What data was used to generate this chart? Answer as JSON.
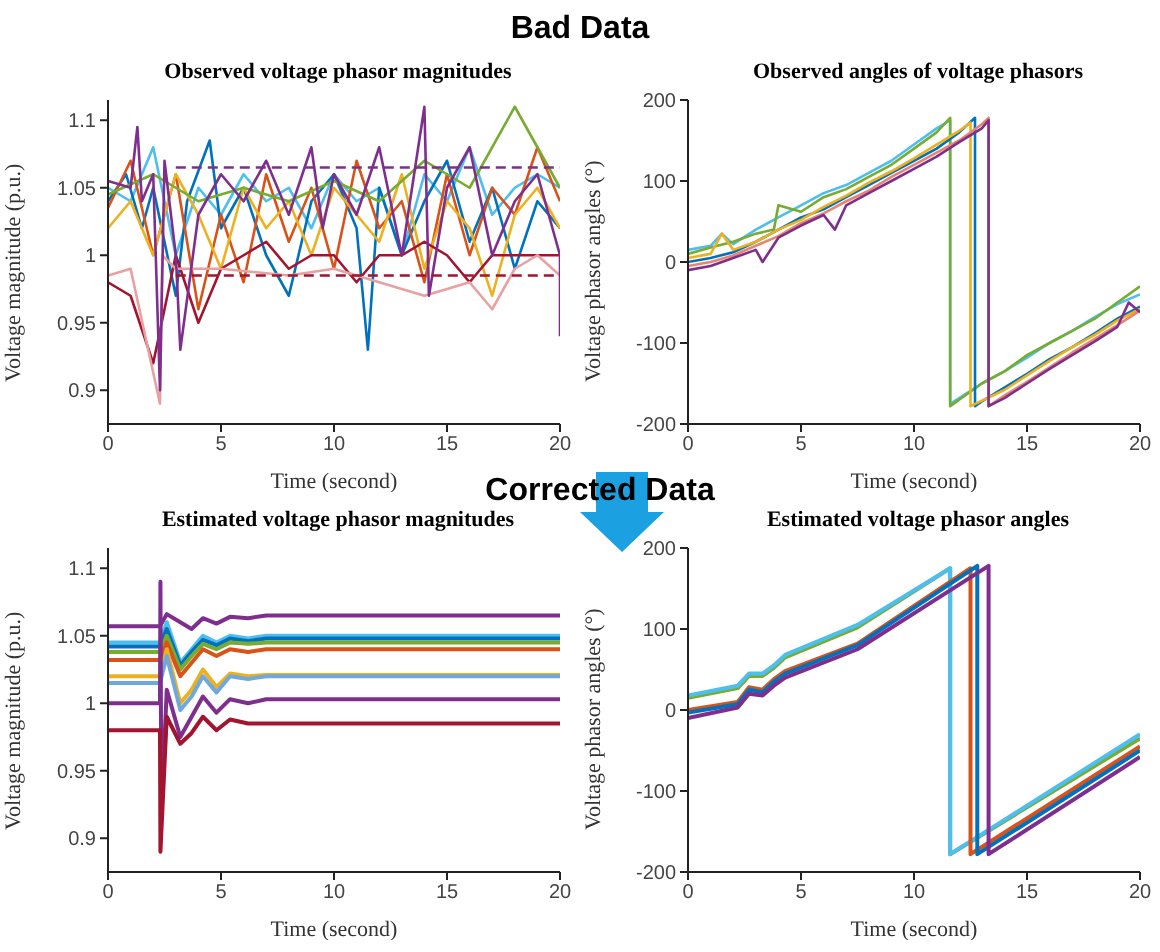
{
  "chart_data": [
    {
      "type": "line",
      "title": "Observed voltage phasor magnitudes",
      "xlabel": "Time (second)",
      "ylabel": "Voltage magnitude (p.u.)",
      "annotations": [
        "Bad Data"
      ],
      "xlim": [
        0,
        20
      ],
      "xticks": [
        0,
        5,
        10,
        15,
        20
      ],
      "ylim": [
        0.875,
        1.115
      ],
      "yticks": [
        0.9,
        0.95,
        1,
        1.05,
        1.1
      ],
      "grid": false,
      "legend": false,
      "series": [
        {
          "color": "#4dbeee",
          "x": [
            0,
            1,
            2,
            3,
            4,
            5,
            6,
            7,
            8,
            9,
            10,
            11,
            12,
            13,
            14,
            15,
            16,
            17,
            18,
            19,
            20
          ],
          "values": [
            1.05,
            1.04,
            1.08,
            1.0,
            1.05,
            1.03,
            1.06,
            1.04,
            1.05,
            1.02,
            1.06,
            1.04,
            1.05,
            1.0,
            1.06,
            1.04,
            1.08,
            1.03,
            1.05,
            1.06,
            1.05
          ]
        },
        {
          "color": "#0072bd",
          "x": [
            0,
            0.8,
            1.5,
            2,
            3,
            3.5,
            4.5,
            5,
            6,
            7,
            8,
            9,
            10,
            11,
            11.5,
            12,
            13,
            14,
            15,
            16,
            17,
            18,
            19,
            20
          ],
          "values": [
            1.04,
            1.06,
            1.02,
            1.05,
            0.97,
            1.04,
            1.085,
            1.02,
            1.05,
            1.0,
            0.97,
            1.04,
            1.06,
            1.02,
            0.93,
            1.05,
            1.0,
            1.04,
            1.07,
            1.01,
            1.05,
            0.99,
            1.04,
            1.02
          ]
        },
        {
          "color": "#d95319",
          "x": [
            0,
            1,
            2,
            3,
            4,
            5,
            6,
            7,
            8,
            9,
            10,
            11,
            12,
            13,
            14,
            15,
            16,
            17,
            18,
            19,
            20
          ],
          "values": [
            1.035,
            1.07,
            1.0,
            1.06,
            0.96,
            1.03,
            0.98,
            1.06,
            1.01,
            1.05,
            0.99,
            1.07,
            1.02,
            1.04,
            0.98,
            1.06,
            1.0,
            1.05,
            1.03,
            1.08,
            1.04
          ]
        },
        {
          "color": "#edb120",
          "x": [
            0,
            1,
            2,
            3,
            4,
            5,
            6,
            7,
            8,
            9,
            10,
            11,
            12,
            13,
            14,
            15,
            16,
            17,
            18,
            19,
            20
          ],
          "values": [
            1.02,
            1.04,
            1.0,
            1.06,
            1.03,
            0.99,
            1.05,
            1.02,
            1.04,
            1.0,
            1.05,
            1.03,
            1.01,
            1.06,
            0.99,
            1.04,
            1.02,
            0.97,
            1.03,
            1.05,
            1.02
          ]
        },
        {
          "color": "#77ac30",
          "x": [
            0,
            2,
            4,
            6,
            8,
            10,
            12,
            14,
            16,
            18,
            20
          ],
          "values": [
            1.045,
            1.06,
            1.04,
            1.05,
            1.04,
            1.055,
            1.04,
            1.07,
            1.05,
            1.11,
            1.05
          ]
        },
        {
          "color": "#a2142f",
          "x": [
            0,
            1,
            2,
            3,
            4,
            5,
            6,
            7,
            8,
            9,
            10,
            11,
            12,
            13,
            14,
            15,
            16,
            17,
            18,
            19,
            20
          ],
          "values": [
            0.98,
            0.97,
            0.92,
            1.0,
            0.95,
            0.99,
            1.0,
            1.01,
            0.99,
            1.0,
            1.0,
            0.98,
            1.0,
            1.0,
            1.01,
            1.0,
            0.98,
            1.0,
            1.0,
            1.0,
            1.0
          ]
        },
        {
          "color": "#e8a0a0",
          "x": [
            0,
            1,
            2.3,
            2.4,
            3,
            5,
            8,
            10,
            12,
            14,
            16,
            17,
            18,
            19,
            20
          ],
          "values": [
            0.985,
            0.99,
            0.89,
            1.0,
            0.99,
            0.99,
            0.985,
            0.99,
            0.98,
            0.97,
            0.98,
            0.96,
            0.99,
            1.0,
            0.985
          ]
        },
        {
          "color": "#7e2f8e",
          "x": [
            0,
            1,
            1.3,
            1.5,
            2,
            2.3,
            2.5,
            3,
            3.2,
            4,
            5,
            6,
            7,
            8,
            9,
            9.5,
            10,
            11,
            12,
            13,
            14,
            14.2,
            15,
            16,
            17,
            18,
            19,
            20,
            20
          ],
          "values": [
            1.055,
            1.05,
            1.095,
            1.04,
            1.06,
            0.9,
            1.07,
            1.0,
            0.93,
            1.03,
            1.06,
            1.04,
            1.07,
            1.03,
            1.08,
            1.02,
            1.06,
            1.03,
            1.08,
            1.0,
            1.11,
            0.97,
            1.05,
            1.08,
            1.0,
            1.04,
            1.06,
            1.0,
            0.94
          ]
        },
        {
          "color": "#7e2f8e",
          "line_style": "dashed",
          "x": [
            3,
            20
          ],
          "values": [
            1.065,
            1.065
          ]
        },
        {
          "color": "#a2142f",
          "line_style": "dashed",
          "x": [
            3,
            20
          ],
          "values": [
            0.985,
            0.985
          ]
        }
      ]
    },
    {
      "type": "line",
      "title": "Observed angles of voltage phasors",
      "xlabel": "Time (second)",
      "ylabel": "Voltage phasor angles (°)",
      "xlim": [
        0,
        20
      ],
      "xticks": [
        0,
        5,
        10,
        15,
        20
      ],
      "ylim": [
        -200,
        200
      ],
      "yticks": [
        -200,
        -100,
        0,
        100,
        200
      ],
      "grid": false,
      "legend": false,
      "series": [
        {
          "color": "#4dbeee",
          "x": [
            0,
            1,
            1.5,
            2,
            3,
            4,
            5,
            6,
            7,
            8,
            9,
            10,
            11,
            11.6,
            11.6,
            13,
            14,
            15,
            16,
            17,
            18,
            19,
            20
          ],
          "values": [
            15,
            20,
            35,
            22,
            40,
            55,
            70,
            85,
            95,
            110,
            125,
            145,
            165,
            175,
            -175,
            -150,
            -135,
            -118,
            -100,
            -85,
            -68,
            -52,
            -40
          ]
        },
        {
          "color": "#77ac30",
          "x": [
            0,
            1,
            2,
            3,
            3.8,
            4,
            5,
            6,
            7,
            8,
            9,
            10,
            11,
            11.6,
            11.6,
            12,
            13,
            14,
            15,
            16,
            17,
            18,
            19,
            20
          ],
          "values": [
            10,
            18,
            25,
            35,
            40,
            70,
            62,
            80,
            90,
            105,
            120,
            140,
            160,
            178,
            -178,
            -170,
            -150,
            -135,
            -115,
            -100,
            -85,
            -70,
            -50,
            -30
          ]
        },
        {
          "color": "#0072bd",
          "x": [
            0,
            1,
            2,
            3,
            4,
            5,
            6,
            7,
            8,
            9,
            10,
            11,
            12,
            12.7,
            12.7,
            13,
            14,
            15,
            16,
            17,
            18,
            19,
            20
          ],
          "values": [
            0,
            5,
            12,
            25,
            40,
            55,
            65,
            80,
            95,
            110,
            125,
            140,
            160,
            178,
            -178,
            -172,
            -155,
            -138,
            -120,
            -105,
            -88,
            -70,
            -55
          ]
        },
        {
          "color": "#edb120",
          "x": [
            0,
            1,
            1.5,
            2,
            3,
            4,
            5,
            6,
            7,
            8,
            9,
            10,
            11,
            12,
            12.5,
            12.5,
            14,
            15,
            16,
            17,
            18,
            19,
            20
          ],
          "values": [
            5,
            10,
            35,
            15,
            25,
            40,
            52,
            68,
            82,
            98,
            112,
            128,
            145,
            162,
            172,
            -178,
            -158,
            -140,
            -122,
            -105,
            -90,
            -72,
            -58
          ]
        },
        {
          "color": "#e8846f",
          "x": [
            0,
            1,
            2,
            3,
            4,
            5,
            6,
            7,
            8,
            9,
            10,
            11,
            12,
            13,
            13.3,
            13.3,
            14,
            15,
            16,
            17,
            18,
            19,
            20
          ],
          "values": [
            -5,
            0,
            8,
            20,
            32,
            48,
            60,
            75,
            88,
            105,
            120,
            135,
            150,
            170,
            178,
            -178,
            -165,
            -148,
            -130,
            -112,
            -95,
            -78,
            -60
          ]
        },
        {
          "color": "#7e2f8e",
          "x": [
            0,
            1,
            2,
            3,
            3.3,
            4,
            5,
            6,
            6.5,
            7,
            8,
            9,
            10,
            11,
            12,
            13,
            13.3,
            13.3,
            14,
            15,
            16,
            17,
            18,
            19,
            19.5,
            20
          ],
          "values": [
            -10,
            -5,
            5,
            15,
            0,
            30,
            45,
            58,
            40,
            70,
            85,
            100,
            115,
            130,
            148,
            165,
            175,
            -178,
            -168,
            -150,
            -132,
            -115,
            -98,
            -80,
            -50,
            -62
          ]
        }
      ]
    },
    {
      "type": "line",
      "title": "Estimated voltage phasor magnitudes",
      "xlabel": "Time (second)",
      "ylabel": "Voltage magnitude (p.u.)",
      "annotations": [
        "Corrected Data"
      ],
      "xlim": [
        0,
        20
      ],
      "xticks": [
        0,
        5,
        10,
        15,
        20
      ],
      "ylim": [
        0.875,
        1.115
      ],
      "yticks": [
        0.9,
        0.95,
        1,
        1.05,
        1.1
      ],
      "grid": false,
      "legend": false,
      "series": [
        {
          "color": "#7e2f8e",
          "x": [
            0,
            2.3,
            2.6,
            3.2,
            3.7,
            4.2,
            4.8,
            5.4,
            6.2,
            7,
            20
          ],
          "values": [
            1.057,
            1.057,
            1.066,
            1.06,
            1.055,
            1.063,
            1.059,
            1.064,
            1.063,
            1.065,
            1.065
          ]
        },
        {
          "color": "#4dbeee",
          "x": [
            0,
            2.3,
            2.6,
            3.2,
            3.7,
            4.2,
            4.8,
            5.4,
            6.2,
            7,
            20
          ],
          "values": [
            1.045,
            1.045,
            1.06,
            1.03,
            1.04,
            1.05,
            1.045,
            1.05,
            1.048,
            1.05,
            1.05
          ]
        },
        {
          "color": "#0072bd",
          "x": [
            0,
            2.3,
            2.6,
            3.2,
            3.7,
            4.2,
            4.8,
            5.4,
            6.2,
            7,
            20
          ],
          "values": [
            1.042,
            1.042,
            1.055,
            1.028,
            1.038,
            1.047,
            1.043,
            1.048,
            1.046,
            1.048,
            1.048
          ]
        },
        {
          "color": "#77ac30",
          "x": [
            0,
            2.3,
            2.6,
            3.2,
            3.7,
            4.2,
            4.8,
            5.4,
            6.2,
            7,
            20
          ],
          "values": [
            1.038,
            1.038,
            1.05,
            1.025,
            1.035,
            1.044,
            1.04,
            1.045,
            1.044,
            1.045,
            1.045
          ]
        },
        {
          "color": "#d95319",
          "x": [
            0,
            2.3,
            2.6,
            3.2,
            3.7,
            4.2,
            4.8,
            5.4,
            6.2,
            7,
            20
          ],
          "values": [
            1.032,
            1.032,
            1.045,
            1.02,
            1.03,
            1.04,
            1.035,
            1.04,
            1.038,
            1.04,
            1.04
          ]
        },
        {
          "color": "#edb120",
          "x": [
            0,
            2.3,
            2.6,
            3.2,
            3.7,
            4.2,
            4.8,
            5.4,
            6.2,
            7,
            20
          ],
          "values": [
            1.02,
            1.02,
            1.04,
            1.0,
            1.01,
            1.025,
            1.012,
            1.022,
            1.02,
            1.021,
            1.021
          ]
        },
        {
          "color": "#6fa8dc",
          "x": [
            0,
            2.3,
            2.6,
            3.2,
            3.7,
            4.2,
            4.8,
            5.4,
            6.2,
            7,
            20
          ],
          "values": [
            1.015,
            1.015,
            1.035,
            0.995,
            1.005,
            1.02,
            1.008,
            1.02,
            1.018,
            1.02,
            1.02
          ]
        },
        {
          "color": "#7e2f8e",
          "x": [
            0,
            2.3,
            2.32,
            2.36,
            2.6,
            3.2,
            3.7,
            4.2,
            4.8,
            5.4,
            6.2,
            7,
            20
          ],
          "values": [
            1.0,
            1.0,
            1.09,
            0.92,
            1.01,
            0.975,
            0.99,
            1.005,
            0.993,
            1.003,
            1.0,
            1.003,
            1.003
          ]
        },
        {
          "color": "#a2142f",
          "x": [
            0,
            2.3,
            2.32,
            2.6,
            3.2,
            3.7,
            4.2,
            4.8,
            5.4,
            6.2,
            7,
            20
          ],
          "values": [
            0.98,
            0.98,
            0.89,
            0.99,
            0.97,
            0.978,
            0.99,
            0.98,
            0.988,
            0.985,
            0.985,
            0.985
          ]
        }
      ]
    },
    {
      "type": "line",
      "title": "Estimated voltage phasor angles",
      "xlabel": "Time (second)",
      "ylabel": "Voltage phasor angles (°)",
      "xlim": [
        0,
        20
      ],
      "xticks": [
        0,
        5,
        10,
        15,
        20
      ],
      "ylim": [
        -200,
        200
      ],
      "yticks": [
        -200,
        -100,
        0,
        100,
        200
      ],
      "grid": false,
      "legend": false,
      "series": [
        {
          "color": "#77ac30",
          "x": [
            0,
            2.2,
            2.7,
            3.3,
            3.8,
            4.3,
            7.5,
            11.6,
            11.6,
            20
          ],
          "values": [
            15,
            27,
            42,
            42,
            52,
            65,
            102,
            175,
            -178,
            -35
          ]
        },
        {
          "color": "#4dbeee",
          "x": [
            0,
            2.2,
            2.7,
            3.3,
            3.8,
            4.3,
            7.5,
            11.6,
            11.6,
            20
          ],
          "values": [
            18,
            30,
            45,
            45,
            55,
            68,
            105,
            175,
            -178,
            -30
          ]
        },
        {
          "color": "#d95319",
          "x": [
            0,
            2.2,
            2.7,
            3.3,
            3.8,
            4.3,
            7.5,
            12.5,
            12.5,
            20
          ],
          "values": [
            0,
            10,
            28,
            25,
            38,
            48,
            82,
            175,
            -178,
            -45
          ]
        },
        {
          "color": "#0072bd",
          "x": [
            0,
            2.2,
            2.7,
            3.3,
            3.8,
            4.3,
            7.5,
            12.8,
            12.8,
            20
          ],
          "values": [
            -3,
            7,
            25,
            22,
            35,
            45,
            80,
            178,
            -178,
            -50
          ]
        },
        {
          "color": "#7e2f8e",
          "x": [
            0,
            2.2,
            2.7,
            3.3,
            3.8,
            4.3,
            7.5,
            13.3,
            13.3,
            20
          ],
          "values": [
            -10,
            3,
            20,
            18,
            30,
            40,
            75,
            178,
            -178,
            -58
          ]
        }
      ]
    }
  ]
}
